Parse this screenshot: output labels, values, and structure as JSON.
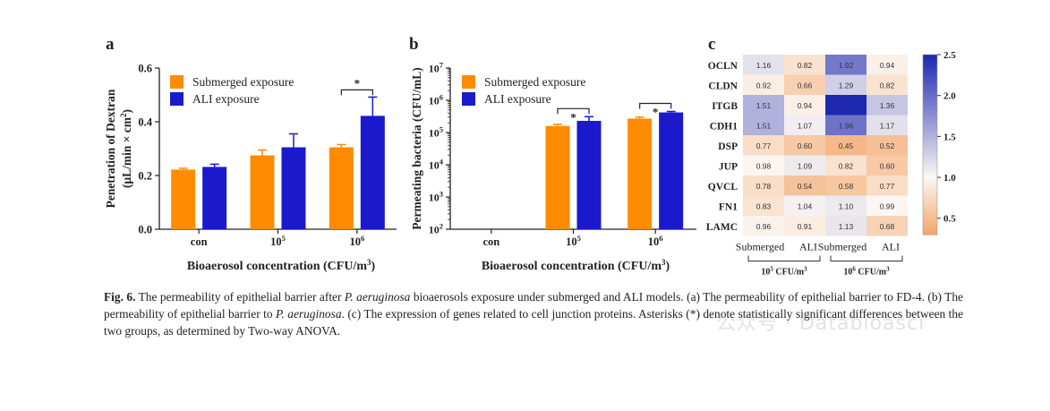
{
  "colors": {
    "submerged": "#ff8c00",
    "ali": "#1a1acc",
    "heat_low": "#f4a76b",
    "heat_mid": "#fbf7f3",
    "heat_high": "#1e28b0"
  },
  "chart_data": [
    {
      "type": "bar",
      "panel_label": "a",
      "categories": [
        "con",
        "10^5",
        "10^6"
      ],
      "category_labels": [
        {
          "base": "con",
          "sup": ""
        },
        {
          "base": "10",
          "sup": "5"
        },
        {
          "base": "10",
          "sup": "6"
        }
      ],
      "series": [
        {
          "name": "Submerged exposure",
          "values": [
            0.222,
            0.275,
            0.305
          ],
          "errors": [
            0.005,
            0.02,
            0.01
          ]
        },
        {
          "name": "ALI exposure",
          "values": [
            0.232,
            0.305,
            0.422
          ],
          "errors": [
            0.01,
            0.05,
            0.07
          ]
        }
      ],
      "ylabel_line1": "Penetration of Dextran",
      "ylabel_line2_base": "(μL/min × cm",
      "ylabel_line2_sup": "2",
      "ylabel_line2_end": ")",
      "xlabel_base": "Bioaerosol concentration (CFU/m",
      "xlabel_sup": "3",
      "xlabel_end": ")",
      "ylim": [
        0,
        0.6
      ],
      "yticks": [
        "0.0",
        "0.2",
        "0.4",
        "0.6"
      ],
      "significance": [
        {
          "category": "10^6",
          "label": "*"
        }
      ],
      "legend_position": "top-left"
    },
    {
      "type": "bar",
      "panel_label": "b",
      "y_scale": "log",
      "categories": [
        "con",
        "10^5",
        "10^6"
      ],
      "category_labels": [
        {
          "base": "con",
          "sup": ""
        },
        {
          "base": "10",
          "sup": "5"
        },
        {
          "base": "10",
          "sup": "6"
        }
      ],
      "series": [
        {
          "name": "Submerged exposure",
          "values": [
            null,
            160000,
            270000
          ],
          "errors": [
            null,
            20000,
            30000
          ]
        },
        {
          "name": "ALI exposure",
          "values": [
            null,
            230000,
            420000
          ],
          "errors": [
            null,
            80000,
            30000
          ]
        }
      ],
      "ylabel": "Permeating bacteria (CFU/mL)",
      "xlabel_base": "Bioaerosol concentration (CFU/m",
      "xlabel_sup": "3",
      "xlabel_end": ")",
      "ylim": [
        100,
        10000000
      ],
      "yticks": [
        {
          "base": "10",
          "sup": "2"
        },
        {
          "base": "10",
          "sup": "3"
        },
        {
          "base": "10",
          "sup": "4"
        },
        {
          "base": "10",
          "sup": "5"
        },
        {
          "base": "10",
          "sup": "6"
        },
        {
          "base": "10",
          "sup": "7"
        }
      ],
      "significance": [
        {
          "category": "10^5",
          "label": "*"
        },
        {
          "category": "10^6",
          "label": "*"
        }
      ],
      "legend_position": "top-left"
    },
    {
      "type": "heatmap",
      "panel_label": "c",
      "rows": [
        "OCLN",
        "CLDN",
        "ITGB",
        "CDH1",
        "DSP",
        "JUP",
        "QVCL",
        "FN1",
        "LAMC"
      ],
      "columns": [
        "Submerged",
        "ALI",
        "Submerged",
        "ALI"
      ],
      "column_groups": [
        {
          "base": "10",
          "sup": "5",
          "unit": " CFU/m",
          "unit_sup": "3"
        },
        {
          "base": "10",
          "sup": "6",
          "unit": " CFU/m",
          "unit_sup": "3"
        }
      ],
      "values": [
        [
          1.16,
          0.82,
          1.92,
          0.94
        ],
        [
          0.92,
          0.66,
          1.29,
          0.82
        ],
        [
          1.51,
          0.94,
          2.5,
          1.36
        ],
        [
          1.51,
          1.07,
          1.96,
          1.17
        ],
        [
          0.77,
          0.6,
          0.45,
          0.52
        ],
        [
          0.98,
          1.09,
          0.82,
          0.6
        ],
        [
          0.78,
          0.54,
          0.58,
          0.77
        ],
        [
          0.83,
          1.04,
          1.1,
          0.99
        ],
        [
          0.96,
          0.91,
          1.13,
          0.68
        ]
      ],
      "cell_labels": [
        [
          "1.16",
          "0.82",
          "1.92",
          "0.94"
        ],
        [
          "0.92",
          "0.66",
          "1.29",
          "0.82"
        ],
        [
          "1.51",
          "0.94",
          "",
          "1.36"
        ],
        [
          "1.51",
          "1.07",
          "1.96",
          "1.17"
        ],
        [
          "0.77",
          "0.60",
          "0.45",
          "0.52"
        ],
        [
          "0.98",
          "1.09",
          "0.82",
          "0.60"
        ],
        [
          "0.78",
          "0.54",
          "0.58",
          "0.77"
        ],
        [
          "0.83",
          "1.04",
          "1.10",
          "0.99"
        ],
        [
          "0.96",
          "0.91",
          "1.13",
          "0.68"
        ]
      ],
      "colorbar_range": [
        0.3,
        2.5
      ],
      "colorbar_ticks": [
        "2.5",
        "2.0",
        "1.5",
        "1.0",
        "0.5"
      ]
    }
  ],
  "caption": {
    "fig_label": "Fig. 6.",
    "t1": " The permeability of epithelial barrier after ",
    "i1": "P. aeruginosa",
    "t2": " bioaerosols exposure under submerged and ALI models. (a) The permeability of epithelial barrier to FD-4. (b) The permeability of epithelial barrier to ",
    "i2": "P. aeruginosa",
    "t3": ". (c) The expression of genes related to cell junction proteins. Asterisks (*) denote statistically significant differences between the two groups, as determined by Two-way ANOVA."
  },
  "watermark": "公众号 · Databioasci"
}
